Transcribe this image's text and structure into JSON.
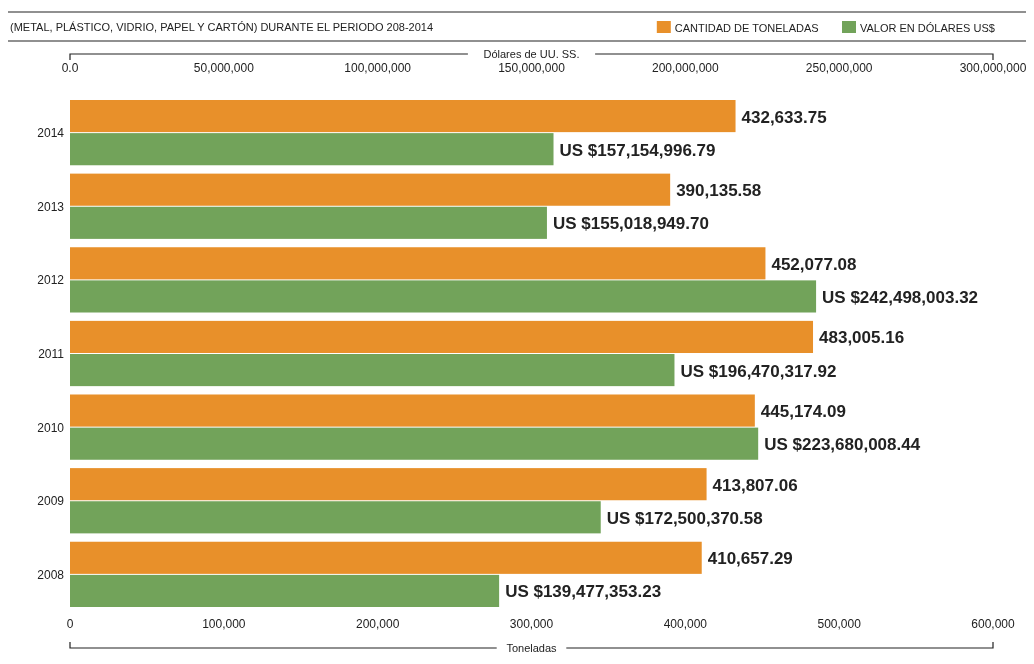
{
  "chart_data": {
    "type": "bar",
    "orientation": "horizontal",
    "subtitle": "(METAL, PLÁSTICO, VIDRIO, PAPEL Y CARTÓN) DURANTE EL PERIODO 208-2014",
    "xlabel": "Toneladas",
    "x2label": "Dólares de UU. SS.",
    "categories": [
      "2014",
      "2013",
      "2012",
      "2011",
      "2010",
      "2009",
      "2008"
    ],
    "series": [
      {
        "name": "CANTIDAD DE TONELADAS",
        "color": "#e8902a",
        "values": [
          432633.75,
          390135.58,
          452077.08,
          483005.16,
          445174.09,
          413807.06,
          410657.29
        ],
        "value_labels": [
          "432,633.75",
          "390,135.58",
          "452,077.08",
          "483,005.16",
          "445,174.09",
          "413,807.06",
          "410,657.29"
        ]
      },
      {
        "name": "VALOR EN DÓLARES US$",
        "color": "#72a35a",
        "axis": "x2",
        "values": [
          157154996.79,
          155018949.7,
          242498003.32,
          196470317.92,
          223680008.44,
          172500370.58,
          139477353.23
        ],
        "value_labels": [
          "US $157,154,996.79",
          "US $155,018,949.70",
          "US $242,498,003.32",
          "US $196,470,317.92",
          "US $223,680,008.44",
          "US $172,500,370.58",
          "US $139,477,353.23"
        ]
      }
    ],
    "xlim": [
      0,
      600000
    ],
    "xticks": [
      0,
      {
        "value": 100000,
        "label": "100,000"
      },
      {
        "value": 200000,
        "label": "200,000"
      },
      {
        "value": 300000,
        "label": "300,000"
      },
      {
        "value": 400000,
        "label": "400,000"
      },
      {
        "value": 500000,
        "label": "500,000"
      },
      {
        "value": 600000,
        "label": "600,000"
      }
    ],
    "x2lim": [
      0,
      300000000
    ],
    "x2ticks": [
      {
        "value": 0,
        "label": "0.0"
      },
      {
        "value": 50000000,
        "label": "50,000,000"
      },
      {
        "value": 100000000,
        "label": "100,000,000"
      },
      {
        "value": 150000000,
        "label": "150,000,000"
      },
      {
        "value": 200000000,
        "label": "200,000,000"
      },
      {
        "value": 250000000,
        "label": "250,000,000"
      },
      {
        "value": 300000000,
        "label": "300,000,000"
      }
    ],
    "legend": "top right",
    "grid": false
  }
}
